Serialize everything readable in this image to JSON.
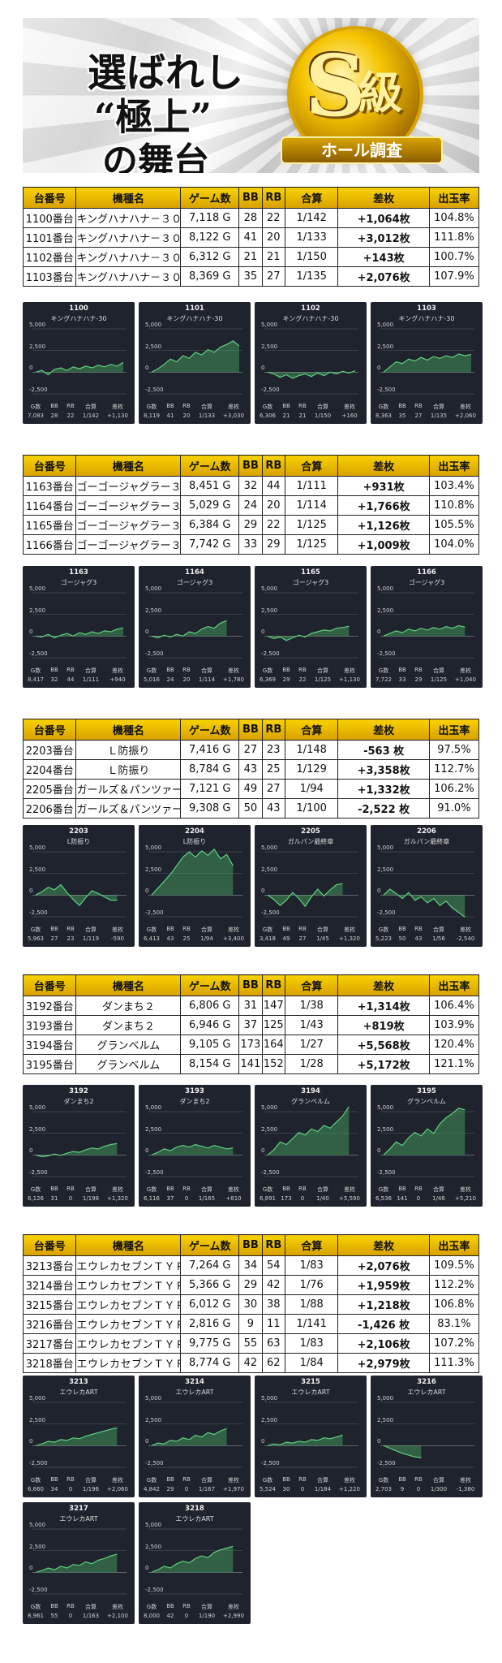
{
  "banner": {
    "line1": "選ばれし",
    "line2": "“極上”",
    "line3": "の舞台",
    "badge_letter": "S",
    "badge_kanji": "級",
    "ribbon": "ホール調査"
  },
  "table_headers": [
    "台番号",
    "機種名",
    "ゲーム数",
    "BB",
    "RB",
    "合算",
    "差枚",
    "出玉率"
  ],
  "chart_foot_headers": [
    "G数",
    "BB",
    "RB",
    "合算",
    "差枚"
  ],
  "chart_y_labels": [
    "5,000",
    "2,500",
    "0",
    "-2,500"
  ],
  "groups": [
    {
      "rows": [
        {
          "no": "1100番台",
          "model": "キングハナハナ－３０",
          "games": "7,118 G",
          "bb": "28",
          "rb": "22",
          "total": "1/142",
          "diff": "+1,064枚",
          "rate": "104.8%"
        },
        {
          "no": "1101番台",
          "model": "キングハナハナ－３０",
          "games": "8,122 G",
          "bb": "41",
          "rb": "20",
          "total": "1/133",
          "diff": "+3,012枚",
          "rate": "111.8%"
        },
        {
          "no": "1102番台",
          "model": "キングハナハナ－３０",
          "games": "6,312 G",
          "bb": "21",
          "rb": "21",
          "total": "1/150",
          "diff": "+143枚",
          "rate": "100.7%"
        },
        {
          "no": "1103番台",
          "model": "キングハナハナ－３０",
          "games": "8,369 G",
          "bb": "35",
          "rb": "27",
          "total": "1/135",
          "diff": "+2,076枚",
          "rate": "107.9%"
        }
      ],
      "charts": [
        {
          "id": "1100",
          "name": "キングハナハナ-30",
          "g": "7,083",
          "bb": "28",
          "rb": "22",
          "total": "1/142",
          "diff": "+1,130",
          "series": [
            0,
            200,
            -300,
            300,
            500,
            200,
            600,
            400,
            700,
            500,
            800,
            600,
            900,
            700,
            1130
          ]
        },
        {
          "id": "1101",
          "name": "キングハナハナ-30",
          "g": "8,119",
          "bb": "41",
          "rb": "20",
          "total": "1/133",
          "diff": "+3,030",
          "series": [
            0,
            400,
            900,
            1500,
            1200,
            1900,
            1600,
            2300,
            2000,
            2600,
            2300,
            2900,
            3200,
            3600,
            3030
          ]
        },
        {
          "id": "1102",
          "name": "キングハナハナ-30",
          "g": "6,306",
          "bb": "21",
          "rb": "21",
          "total": "1/150",
          "diff": "+160",
          "series": [
            0,
            -200,
            -600,
            -300,
            -700,
            -400,
            -200,
            -500,
            -100,
            -400,
            0,
            -200,
            100,
            -100,
            160
          ]
        },
        {
          "id": "1103",
          "name": "キングハナハナ-30",
          "g": "8,363",
          "bb": "35",
          "rb": "27",
          "total": "1/135",
          "diff": "+2,060",
          "series": [
            0,
            600,
            1200,
            1000,
            1500,
            1300,
            1700,
            1400,
            1800,
            1600,
            1900,
            1700,
            2100,
            1900,
            2060
          ]
        }
      ]
    },
    {
      "rows": [
        {
          "no": "1163番台",
          "model": "ゴーゴージャグラー３",
          "games": "8,451 G",
          "bb": "32",
          "rb": "44",
          "total": "1/111",
          "diff": "+931枚",
          "rate": "103.4%"
        },
        {
          "no": "1164番台",
          "model": "ゴーゴージャグラー３",
          "games": "5,029 G",
          "bb": "24",
          "rb": "20",
          "total": "1/114",
          "diff": "+1,766枚",
          "rate": "110.8%"
        },
        {
          "no": "1165番台",
          "model": "ゴーゴージャグラー３",
          "games": "6,384 G",
          "bb": "29",
          "rb": "22",
          "total": "1/125",
          "diff": "+1,126枚",
          "rate": "105.5%"
        },
        {
          "no": "1166番台",
          "model": "ゴーゴージャグラー３",
          "games": "7,742 G",
          "bb": "33",
          "rb": "29",
          "total": "1/125",
          "diff": "+1,009枚",
          "rate": "104.0%"
        }
      ],
      "charts": [
        {
          "id": "1163",
          "name": "ゴージャグ3",
          "g": "8,417",
          "bb": "32",
          "rb": "44",
          "total": "1/111",
          "diff": "+940",
          "series": [
            0,
            -100,
            200,
            -200,
            100,
            300,
            0,
            400,
            200,
            500,
            300,
            600,
            500,
            800,
            940
          ]
        },
        {
          "id": "1164",
          "name": "ゴージャグ3",
          "g": "5,016",
          "bb": "24",
          "rb": "20",
          "total": "1/114",
          "diff": "+1,780",
          "series": [
            0,
            -200,
            100,
            -100,
            200,
            0,
            500,
            300,
            800,
            1100,
            900,
            1500,
            1780
          ]
        },
        {
          "id": "1165",
          "name": "ゴージャグ3",
          "g": "6,369",
          "bb": "29",
          "rb": "22",
          "total": "1/125",
          "diff": "+1,130",
          "series": [
            0,
            -300,
            -100,
            -500,
            -200,
            100,
            -100,
            300,
            500,
            700,
            600,
            900,
            1000,
            1130
          ]
        },
        {
          "id": "1166",
          "name": "ゴージャグ3",
          "g": "7,722",
          "bb": "33",
          "rb": "29",
          "total": "1/125",
          "diff": "+1,040",
          "series": [
            0,
            300,
            600,
            400,
            800,
            600,
            900,
            700,
            1000,
            800,
            1100,
            900,
            1200,
            1040
          ]
        }
      ]
    },
    {
      "rows": [
        {
          "no": "2203番台",
          "model": "Ｌ防振り",
          "games": "7,416 G",
          "bb": "27",
          "rb": "23",
          "total": "1/148",
          "diff": "-563 枚",
          "rate": "97.5%",
          "neg": true
        },
        {
          "no": "2204番台",
          "model": "Ｌ防振り",
          "games": "8,784 G",
          "bb": "43",
          "rb": "25",
          "total": "1/129",
          "diff": "+3,358枚",
          "rate": "112.7%"
        },
        {
          "no": "2205番台",
          "model": "ガールズ＆パンツァー最終章",
          "games": "7,121 G",
          "bb": "49",
          "rb": "27",
          "total": "1/94",
          "diff": "+1,332枚",
          "rate": "106.2%",
          "small": true
        },
        {
          "no": "2206番台",
          "model": "ガールズ＆パンツァー最終章",
          "games": "9,308 G",
          "bb": "50",
          "rb": "43",
          "total": "1/100",
          "diff": "-2,522 枚",
          "rate": "91.0%",
          "neg": true,
          "small": true
        }
      ],
      "charts": [
        {
          "id": "2203",
          "name": "L防振り",
          "g": "5,963",
          "bb": "27",
          "rb": "23",
          "total": "1/119",
          "diff": "-590",
          "series": [
            0,
            400,
            900,
            600,
            1200,
            300,
            -500,
            -1200,
            -300,
            500,
            200,
            -200,
            -600,
            -590
          ]
        },
        {
          "id": "2204",
          "name": "L防振り",
          "g": "6,413",
          "bb": "43",
          "rb": "25",
          "total": "1/94",
          "diff": "+3,400",
          "series": [
            0,
            800,
            1600,
            2400,
            3400,
            4400,
            5000,
            4400,
            5100,
            4600,
            5300,
            4200,
            4700,
            3400
          ]
        },
        {
          "id": "2205",
          "name": "ガルパン最終章",
          "g": "3,418",
          "bb": "49",
          "rb": "27",
          "total": "1/45",
          "diff": "+1,320",
          "series": [
            0,
            -500,
            -1200,
            -600,
            300,
            -400,
            -1300,
            -200,
            700,
            -100,
            600,
            1200,
            1320
          ]
        },
        {
          "id": "2206",
          "name": "ガルパン最終章",
          "g": "5,223",
          "bb": "50",
          "rb": "43",
          "total": "1/56",
          "diff": "-2,540",
          "series": [
            0,
            700,
            200,
            -400,
            300,
            -600,
            -200,
            -900,
            -400,
            -1200,
            -700,
            -1500,
            -2000,
            -2540
          ]
        }
      ]
    },
    {
      "rows": [
        {
          "no": "3192番台",
          "model": "ダンまち２",
          "games": "6,806 G",
          "bb": "31",
          "rb": "147",
          "total": "1/38",
          "diff": "+1,314枚",
          "rate": "106.4%"
        },
        {
          "no": "3193番台",
          "model": "ダンまち２",
          "games": "6,946 G",
          "bb": "37",
          "rb": "125",
          "total": "1/43",
          "diff": "+819枚",
          "rate": "103.9%"
        },
        {
          "no": "3194番台",
          "model": "グランベルム",
          "games": "9,105 G",
          "bb": "173",
          "rb": "164",
          "total": "1/27",
          "diff": "+5,568枚",
          "rate": "120.4%"
        },
        {
          "no": "3195番台",
          "model": "グランベルム",
          "games": "8,154 G",
          "bb": "141",
          "rb": "152",
          "total": "1/28",
          "diff": "+5,172枚",
          "rate": "121.1%"
        }
      ],
      "charts": [
        {
          "id": "3192",
          "name": "ダンまち2",
          "g": "6,126",
          "bb": "31",
          "rb": "0",
          "total": "1/198",
          "diff": "+1,320",
          "series": [
            0,
            -200,
            -100,
            100,
            -50,
            200,
            400,
            300,
            600,
            800,
            700,
            1000,
            1200,
            1320
          ]
        },
        {
          "id": "3193",
          "name": "ダンまち2",
          "g": "6,116",
          "bb": "37",
          "rb": "0",
          "total": "1/165",
          "diff": "+810",
          "series": [
            0,
            300,
            700,
            500,
            900,
            1100,
            900,
            1200,
            1000,
            800,
            1100,
            900,
            700,
            810
          ]
        },
        {
          "id": "3194",
          "name": "グランベルム",
          "g": "6,891",
          "bb": "173",
          "rb": "0",
          "total": "1/40",
          "diff": "+5,590",
          "series": [
            0,
            600,
            1500,
            1200,
            1900,
            2600,
            2300,
            3000,
            2700,
            3400,
            3100,
            3800,
            4500,
            5590
          ]
        },
        {
          "id": "3195",
          "name": "グランベルム",
          "g": "6,536",
          "bb": "141",
          "rb": "0",
          "total": "1/46",
          "diff": "+5,210",
          "series": [
            0,
            700,
            1500,
            1100,
            2000,
            2600,
            2200,
            3000,
            2500,
            3600,
            4300,
            4800,
            5400,
            5210
          ]
        }
      ]
    },
    {
      "rows": [
        {
          "no": "3213番台",
          "model": "エウレカセブンＴＹＰＥ－ＡＲＴ",
          "games": "7,264 G",
          "bb": "34",
          "rb": "54",
          "total": "1/83",
          "diff": "+2,076枚",
          "rate": "109.5%",
          "xs": true
        },
        {
          "no": "3214番台",
          "model": "エウレカセブンＴＹＰＥ－ＡＲＴ",
          "games": "5,366 G",
          "bb": "29",
          "rb": "42",
          "total": "1/76",
          "diff": "+1,959枚",
          "rate": "112.2%",
          "xs": true
        },
        {
          "no": "3215番台",
          "model": "エウレカセブンＴＹＰＥ－ＡＲＴ",
          "games": "6,012 G",
          "bb": "30",
          "rb": "38",
          "total": "1/88",
          "diff": "+1,218枚",
          "rate": "106.8%",
          "xs": true
        },
        {
          "no": "3216番台",
          "model": "エウレカセブンＴＹＰＥ－ＡＲＴ",
          "games": "2,816 G",
          "bb": "9",
          "rb": "11",
          "total": "1/141",
          "diff": "-1,426 枚",
          "rate": "83.1%",
          "neg": true,
          "xs": true
        },
        {
          "no": "3217番台",
          "model": "エウレカセブンＴＹＰＥ－ＡＲＴ",
          "games": "9,775 G",
          "bb": "55",
          "rb": "63",
          "total": "1/83",
          "diff": "+2,106枚",
          "rate": "107.2%",
          "xs": true
        },
        {
          "no": "3218番台",
          "model": "エウレカセブンＴＹＰＥ－ＡＲＴ",
          "games": "8,774 G",
          "bb": "42",
          "rb": "62",
          "total": "1/84",
          "diff": "+2,979枚",
          "rate": "111.3%",
          "xs": true
        }
      ],
      "charts": [
        {
          "id": "3213",
          "name": "エウレカART",
          "g": "6,660",
          "bb": "34",
          "rb": "0",
          "total": "1/196",
          "diff": "+2,060",
          "series": [
            0,
            200,
            500,
            400,
            700,
            600,
            900,
            800,
            1100,
            1300,
            1500,
            1700,
            1900,
            2060
          ]
        },
        {
          "id": "3214",
          "name": "エウレカART",
          "g": "4,842",
          "bb": "29",
          "rb": "0",
          "total": "1/167",
          "diff": "+1,970",
          "series": [
            0,
            300,
            200,
            600,
            500,
            900,
            700,
            1200,
            1000,
            1500,
            1300,
            1700,
            1970
          ]
        },
        {
          "id": "3215",
          "name": "エウレカART",
          "g": "5,524",
          "bb": "30",
          "rb": "0",
          "total": "1/184",
          "diff": "+1,220",
          "series": [
            0,
            200,
            100,
            400,
            300,
            500,
            400,
            700,
            600,
            900,
            800,
            1000,
            1220
          ]
        },
        {
          "id": "3216",
          "name": "エウレカART",
          "g": "2,703",
          "bb": "9",
          "rb": "0",
          "total": "1/300",
          "diff": "-1,380",
          "series": [
            0,
            -300,
            -600,
            -900,
            -1100,
            -1300,
            -1380
          ]
        },
        {
          "id": "3217",
          "name": "エウレカART",
          "g": "8,961",
          "bb": "55",
          "rb": "0",
          "total": "1/163",
          "diff": "+2,100",
          "series": [
            0,
            200,
            500,
            300,
            700,
            500,
            900,
            800,
            1200,
            1000,
            1400,
            1600,
            1900,
            2100
          ]
        },
        {
          "id": "3218",
          "name": "エウレカART",
          "g": "8,000",
          "bb": "42",
          "rb": "0",
          "total": "1/190",
          "diff": "+2,990",
          "series": [
            0,
            300,
            700,
            500,
            1000,
            1300,
            1100,
            1600,
            1900,
            1700,
            2300,
            2600,
            2800,
            2990
          ]
        }
      ]
    }
  ]
}
